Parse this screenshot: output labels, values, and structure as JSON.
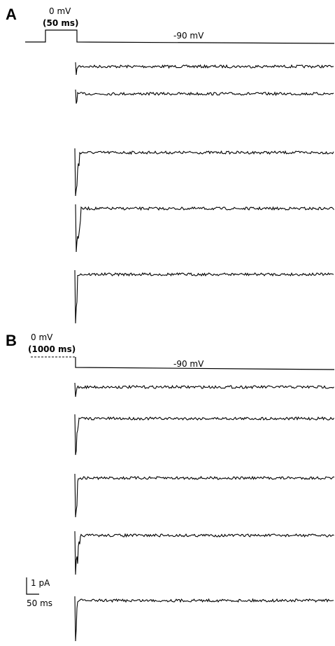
{
  "panel_a": {
    "letter": "A",
    "step_voltage": "0 mV",
    "step_duration": "50 ms",
    "hold_voltage": "-90 mV",
    "trace_count": 5
  },
  "panel_b": {
    "letter": "B",
    "step_voltage": "0 mV",
    "step_duration": "1000 ms",
    "hold_voltage": "-90 mV",
    "trace_count": 6
  },
  "scale_bar": {
    "current": "1 pA",
    "time": "50 ms"
  },
  "colors": {
    "trace": "#000000",
    "background": "#ffffff"
  }
}
